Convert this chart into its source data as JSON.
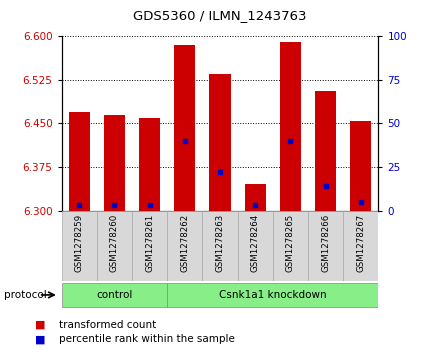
{
  "title": "GDS5360 / ILMN_1243763",
  "samples": [
    "GSM1278259",
    "GSM1278260",
    "GSM1278261",
    "GSM1278262",
    "GSM1278263",
    "GSM1278264",
    "GSM1278265",
    "GSM1278266",
    "GSM1278267"
  ],
  "bar_values": [
    6.47,
    6.465,
    6.46,
    6.585,
    6.535,
    6.345,
    6.59,
    6.505,
    6.455
  ],
  "bar_bottom": 6.3,
  "percentile_values": [
    3,
    3,
    3,
    40,
    22,
    3,
    40,
    14,
    5
  ],
  "ylim_left": [
    6.3,
    6.6
  ],
  "ylim_right": [
    0,
    100
  ],
  "yticks_left": [
    6.3,
    6.375,
    6.45,
    6.525,
    6.6
  ],
  "yticks_right": [
    0,
    25,
    50,
    75,
    100
  ],
  "bar_color": "#cc0000",
  "percentile_color": "#0000cc",
  "control_label": "control",
  "knockdown_label": "Csnk1a1 knockdown",
  "protocol_label": "protocol",
  "legend_bar": "transformed count",
  "legend_pct": "percentile rank within the sample",
  "group_color": "#88ee88",
  "axis_label_color_left": "#cc0000",
  "axis_label_color_right": "#0000cc",
  "bar_width": 0.6
}
